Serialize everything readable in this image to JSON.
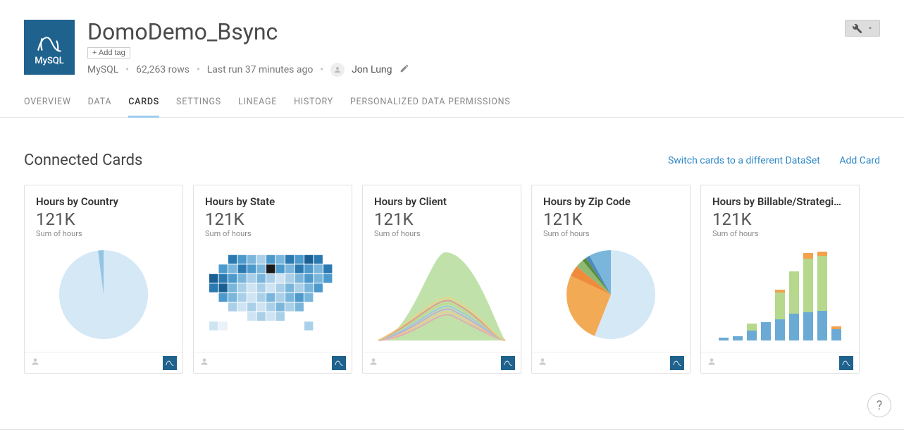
{
  "header": {
    "logo_label": "MySQL",
    "title": "DomoDemo_Bsync",
    "add_tag_label": "+ Add tag",
    "source": "MySQL",
    "rows": "62,263 rows",
    "last_run": "Last run 37 minutes ago",
    "owner": "Jon Lung"
  },
  "tabs": [
    {
      "label": "OVERVIEW",
      "active": false
    },
    {
      "label": "DATA",
      "active": false
    },
    {
      "label": "CARDS",
      "active": true
    },
    {
      "label": "SETTINGS",
      "active": false
    },
    {
      "label": "LINEAGE",
      "active": false
    },
    {
      "label": "HISTORY",
      "active": false
    },
    {
      "label": "PERSONALIZED DATA PERMISSIONS",
      "active": false
    }
  ],
  "section": {
    "title": "Connected Cards",
    "switch_link": "Switch cards to a different DataSet",
    "add_link": "Add Card"
  },
  "cards": [
    {
      "title": "Hours by Country",
      "value": "121K",
      "subtitle": "Sum of hours",
      "chart_type": "pie",
      "pie": {
        "slices": [
          {
            "color": "#d4e8f6",
            "pct": 98
          },
          {
            "color": "#94c4e3",
            "pct": 2
          }
        ]
      }
    },
    {
      "title": "Hours by State",
      "value": "121K",
      "subtitle": "Sum of hours",
      "chart_type": "us_map",
      "map_palette": [
        "#eaf2f9",
        "#cfe4f2",
        "#aacfe8",
        "#7ab6db",
        "#4c99cb",
        "#2a79b1",
        "#1a5f94"
      ],
      "highlight_color": "#1a1a1a"
    },
    {
      "title": "Hours by Client",
      "value": "121K",
      "subtitle": "Sum of hours",
      "chart_type": "area",
      "area": {
        "top_color": "#c0e2aa",
        "ribbons": [
          "#e6a3b0",
          "#f2c496",
          "#c3a6d9",
          "#9cc4e3",
          "#b8d98c",
          "#e58f8f",
          "#f0d080"
        ]
      }
    },
    {
      "title": "Hours by Zip Code",
      "value": "121K",
      "subtitle": "Sum of hours",
      "chart_type": "pie",
      "pie": {
        "slices": [
          {
            "color": "#d4e8f6",
            "pct": 56
          },
          {
            "color": "#f3aa55",
            "pct": 26
          },
          {
            "color": "#f08b3c",
            "pct": 4
          },
          {
            "color": "#8fb972",
            "pct": 3
          },
          {
            "color": "#5a8d3e",
            "pct": 1.5
          },
          {
            "color": "#4c8bc0",
            "pct": 1.5
          },
          {
            "color": "#7ab6db",
            "pct": 8
          }
        ]
      }
    },
    {
      "title": "Hours by Billable/Strategi…",
      "value": "121K",
      "subtitle": "Sum of hours",
      "chart_type": "stacked_bar",
      "bars": {
        "colors": {
          "blue": "#6aaad4",
          "green": "#b5d88c",
          "orange": "#f3a14b"
        },
        "items": [
          {
            "blue": 4,
            "green": 0,
            "orange": 0
          },
          {
            "blue": 6,
            "green": 0,
            "orange": 0
          },
          {
            "blue": 14,
            "green": 10,
            "orange": 0
          },
          {
            "blue": 26,
            "green": 0,
            "orange": 0
          },
          {
            "blue": 30,
            "green": 38,
            "orange": 4
          },
          {
            "blue": 38,
            "green": 60,
            "orange": 0
          },
          {
            "blue": 40,
            "green": 76,
            "orange": 8
          },
          {
            "blue": 42,
            "green": 78,
            "orange": 6
          },
          {
            "blue": 16,
            "green": 0,
            "orange": 4
          }
        ]
      }
    }
  ],
  "help_label": "?"
}
